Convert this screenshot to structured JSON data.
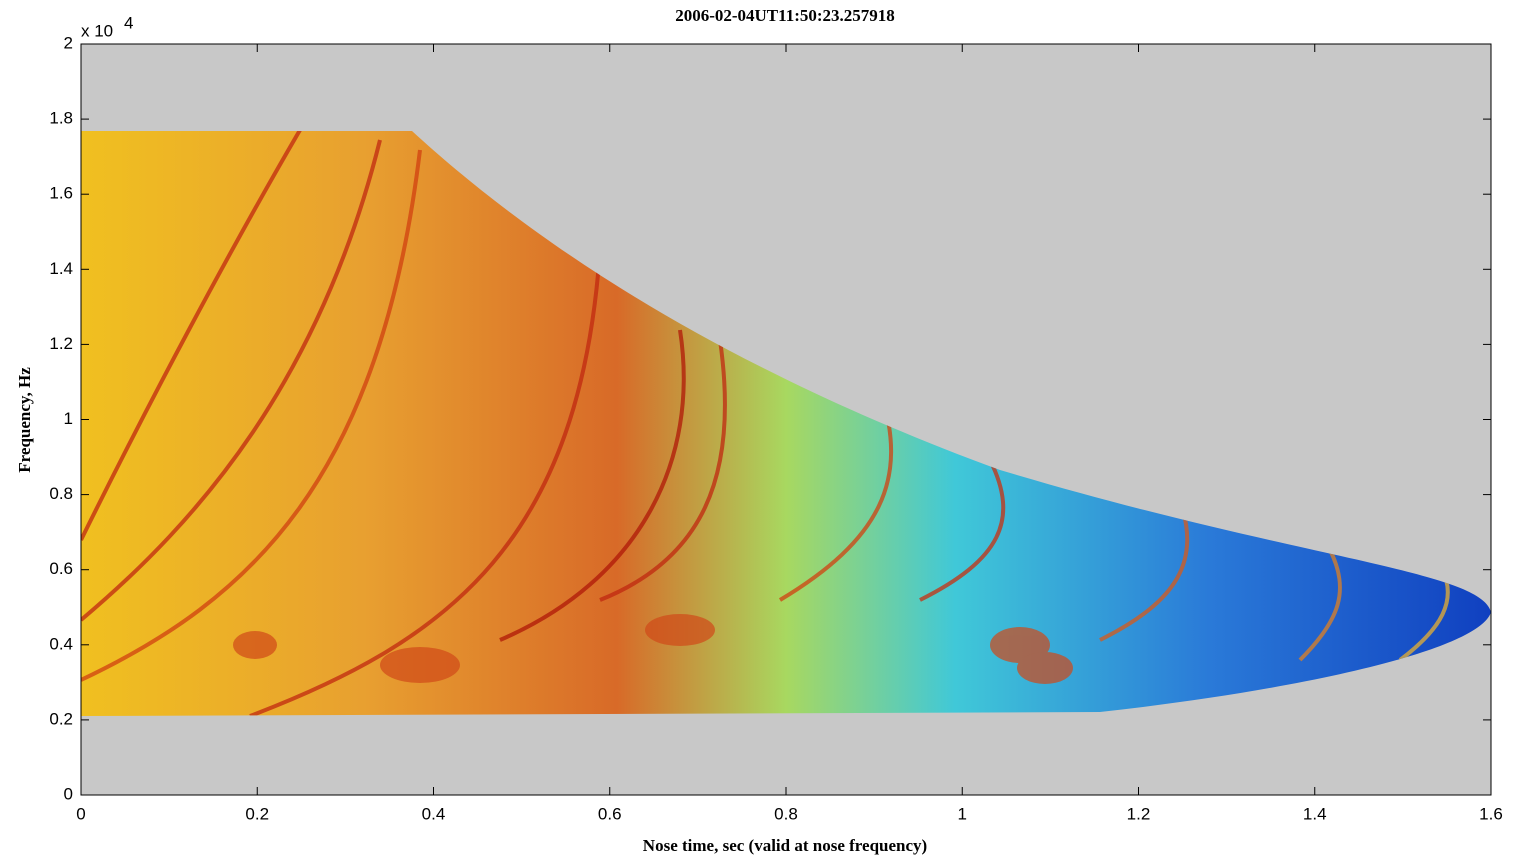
{
  "chart_data": {
    "type": "spectrogram",
    "title": "2006-02-04UT11:50:23.257918",
    "xlabel": "Nose time, sec (valid at nose frequency)",
    "ylabel": "Frequency, Hz",
    "y_multiplier": "x 10",
    "y_multiplier_exponent": "4",
    "xlim": [
      0,
      1.6
    ],
    "xticks": [
      0,
      0.2,
      0.4,
      0.6,
      0.8,
      1,
      1.2,
      1.4,
      1.6
    ],
    "ylim": [
      0,
      20000
    ],
    "yticks": [
      0,
      {
        "value": 2000,
        "label": "0.2"
      },
      {
        "value": 4000,
        "label": "0.4"
      },
      {
        "value": 6000,
        "label": "0.6"
      },
      {
        "value": 8000,
        "label": "0.8"
      },
      {
        "value": 10000,
        "label": "1"
      },
      {
        "value": 12000,
        "label": "1.2"
      },
      {
        "value": 14000,
        "label": "1.4"
      },
      {
        "value": 16000,
        "label": "1.6"
      },
      {
        "value": 18000,
        "label": "1.8"
      },
      {
        "value": 20000,
        "label": "2"
      }
    ],
    "background": "#c8c8c8"
  }
}
